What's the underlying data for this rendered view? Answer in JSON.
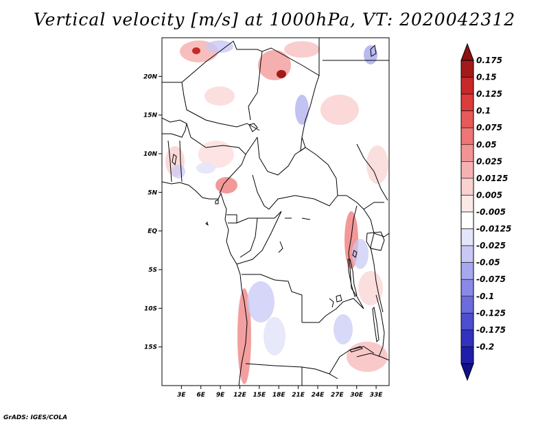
{
  "title": "Vertical velocity [m/s] at 1000hPa, VT: 2020042312",
  "credit": "GrADS: IGES/COLA",
  "map": {
    "lon_range": [
      0,
      35
    ],
    "lat_range": [
      -20,
      25
    ],
    "x_ticks": [
      {
        "value": 3,
        "label": "3E"
      },
      {
        "value": 6,
        "label": "6E"
      },
      {
        "value": 9,
        "label": "9E"
      },
      {
        "value": 12,
        "label": "12E"
      },
      {
        "value": 15,
        "label": "15E"
      },
      {
        "value": 18,
        "label": "18E"
      },
      {
        "value": 21,
        "label": "21E"
      },
      {
        "value": 24,
        "label": "24E"
      },
      {
        "value": 27,
        "label": "27E"
      },
      {
        "value": 30,
        "label": "30E"
      },
      {
        "value": 33,
        "label": "33E"
      }
    ],
    "y_ticks": [
      {
        "value": 20,
        "label": "20N"
      },
      {
        "value": 15,
        "label": "15N"
      },
      {
        "value": 10,
        "label": "10N"
      },
      {
        "value": 5,
        "label": "5N"
      },
      {
        "value": 0,
        "label": "EQ"
      },
      {
        "value": -5,
        "label": "5S"
      },
      {
        "value": -10,
        "label": "10S"
      },
      {
        "value": -15,
        "label": "15S"
      }
    ]
  },
  "colorbar": {
    "levels": [
      {
        "label": "0.175",
        "color": "#a31a1a"
      },
      {
        "label": "0.15",
        "color": "#c82828"
      },
      {
        "label": "0.125",
        "color": "#dc3c3c"
      },
      {
        "label": "0.1",
        "color": "#e65a5a"
      },
      {
        "label": "0.075",
        "color": "#ee7676"
      },
      {
        "label": "0.05",
        "color": "#f29494"
      },
      {
        "label": "0.025",
        "color": "#f6b2b2"
      },
      {
        "label": "0.0125",
        "color": "#fad0d0"
      },
      {
        "label": "0.005",
        "color": "#fde8e8"
      },
      {
        "label": "-0.005",
        "color": "#ffffff"
      },
      {
        "label": "-0.0125",
        "color": "#e4e4fa"
      },
      {
        "label": "-0.025",
        "color": "#c8c8f5"
      },
      {
        "label": "-0.05",
        "color": "#a8a8ee"
      },
      {
        "label": "-0.075",
        "color": "#8a8ae6"
      },
      {
        "label": "-0.1",
        "color": "#6c6cdc"
      },
      {
        "label": "-0.125",
        "color": "#4e4ed0"
      },
      {
        "label": "-0.175",
        "color": "#3232be"
      },
      {
        "label": "-0.2",
        "color": "#1e1eaa"
      }
    ],
    "top_cap_color": "#8b1010",
    "bottom_cap_color": "#10108c"
  }
}
